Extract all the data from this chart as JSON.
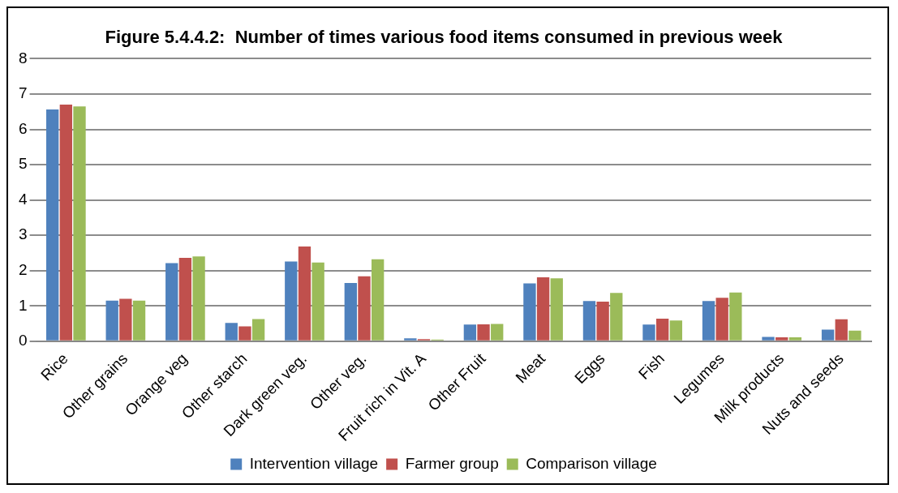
{
  "chart_data": {
    "type": "bar",
    "title": "Figure 5.4.4.2:  Number of times various food items consumed in previous week",
    "categories": [
      "Rice",
      "Other grains",
      "Orange veg",
      "Other starch",
      "Dark green veg.",
      "Other veg.",
      "Fruit rich in Vit. A",
      "Other Fruit",
      "Meat",
      "Eggs",
      "Fish",
      "Legumes",
      "Milk products",
      "Nuts and seeds"
    ],
    "series": [
      {
        "name": "Intervention village",
        "color": "#4f81bd",
        "values": [
          6.56,
          1.15,
          2.21,
          0.52,
          2.26,
          1.65,
          0.08,
          0.47,
          1.64,
          1.14,
          0.47,
          1.14,
          0.12,
          0.33
        ]
      },
      {
        "name": "Farmer group",
        "color": "#c0504d",
        "values": [
          6.7,
          1.2,
          2.36,
          0.42,
          2.68,
          1.84,
          0.06,
          0.48,
          1.81,
          1.12,
          0.64,
          1.23,
          0.11,
          0.62
        ]
      },
      {
        "name": "Comparison village",
        "color": "#9bbb59",
        "values": [
          6.65,
          1.15,
          2.4,
          0.63,
          2.23,
          2.32,
          0.05,
          0.49,
          1.78,
          1.37,
          0.59,
          1.38,
          0.11,
          0.3
        ]
      }
    ],
    "ylim": [
      0,
      8
    ],
    "yticks": [
      0,
      1,
      2,
      3,
      4,
      5,
      6,
      7,
      8
    ],
    "grid": "y",
    "legend": "bottom"
  }
}
